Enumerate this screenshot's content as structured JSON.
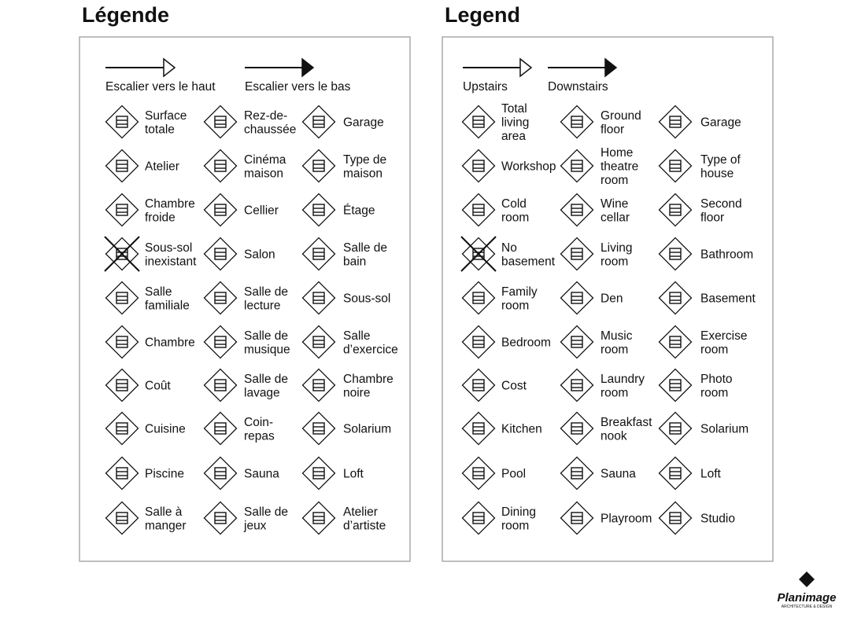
{
  "panels": [
    {
      "title": "Légende",
      "stairs": [
        "Escalier vers le haut",
        "Escalier vers le bas"
      ],
      "items": [
        [
          [
            "Surface",
            "totale"
          ],
          [
            "Rez-de-",
            "chaussée"
          ],
          [
            "Garage"
          ]
        ],
        [
          [
            "Atelier"
          ],
          [
            "Cinéma",
            "maison"
          ],
          [
            "Type de",
            "maison"
          ]
        ],
        [
          [
            "Chambre",
            "froide"
          ],
          [
            "Cellier"
          ],
          [
            "Étage"
          ]
        ],
        [
          [
            "Sous-sol",
            "inexistant"
          ],
          [
            "Salon"
          ],
          [
            "Salle de",
            "bain"
          ]
        ],
        [
          [
            "Salle",
            "familiale"
          ],
          [
            "Salle de",
            "lecture"
          ],
          [
            "Sous-sol"
          ]
        ],
        [
          [
            "Chambre"
          ],
          [
            "Salle de",
            "musique"
          ],
          [
            "Salle",
            "d’exercice"
          ]
        ],
        [
          [
            "Coût"
          ],
          [
            "Salle de",
            "lavage"
          ],
          [
            "Chambre",
            "noire"
          ]
        ],
        [
          [
            "Cuisine"
          ],
          [
            "Coin-",
            "repas"
          ],
          [
            "Solarium"
          ]
        ],
        [
          [
            "Piscine"
          ],
          [
            "Sauna"
          ],
          [
            "Loft"
          ]
        ],
        [
          [
            "Salle à",
            "manger"
          ],
          [
            "Salle de",
            "jeux"
          ],
          [
            "Atelier",
            "d’artiste"
          ]
        ]
      ]
    },
    {
      "title": "Legend",
      "stairs": [
        "Upstairs",
        "Downstairs"
      ],
      "items": [
        [
          [
            "Total",
            "living",
            "area"
          ],
          [
            "Ground",
            "floor"
          ],
          [
            "Garage"
          ]
        ],
        [
          [
            "Workshop"
          ],
          [
            "Home",
            "theatre",
            "room"
          ],
          [
            "Type of",
            "house"
          ]
        ],
        [
          [
            "Cold",
            "room"
          ],
          [
            "Wine",
            "cellar"
          ],
          [
            "Second",
            "floor"
          ]
        ],
        [
          [
            "No",
            "basement"
          ],
          [
            "Living",
            "room"
          ],
          [
            "Bathroom"
          ]
        ],
        [
          [
            "Family",
            "room"
          ],
          [
            "Den"
          ],
          [
            "Basement"
          ]
        ],
        [
          [
            "Bedroom"
          ],
          [
            "Music",
            "room"
          ],
          [
            "Exercise",
            "room"
          ]
        ],
        [
          [
            "Cost"
          ],
          [
            "Laundry",
            "room"
          ],
          [
            "Photo",
            "room"
          ]
        ],
        [
          [
            "Kitchen"
          ],
          [
            "Breakfast",
            "nook"
          ],
          [
            "Solarium"
          ]
        ],
        [
          [
            "Pool"
          ],
          [
            "Sauna"
          ],
          [
            "Loft"
          ]
        ],
        [
          [
            "Dining",
            "room"
          ],
          [
            "Playroom"
          ],
          [
            "Studio"
          ]
        ]
      ]
    }
  ],
  "logo": {
    "name": "Planimage",
    "tagline": "ARCHITECTURE & DESIGN"
  }
}
